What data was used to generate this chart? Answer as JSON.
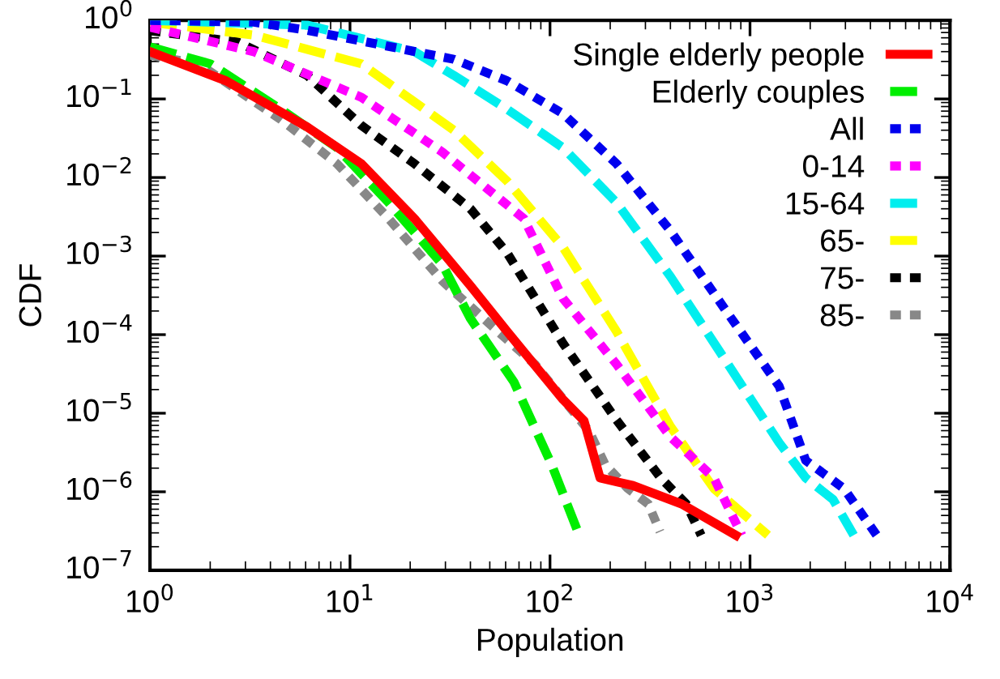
{
  "chart_data": {
    "type": "line",
    "xlabel": "Population",
    "ylabel": "CDF",
    "log": "xy",
    "grid": false,
    "legend": "top right",
    "marker": "none",
    "xlim": [
      1,
      10000
    ],
    "ylim": [
      1e-07,
      1
    ],
    "xticks": [
      {
        "value": 1,
        "label": "10$^{0}$"
      },
      {
        "value": 10,
        "label": "10$^{1}$"
      },
      {
        "value": 100,
        "label": "10$^{2}$"
      },
      {
        "value": 1000,
        "label": "10$^{3}$"
      },
      {
        "value": 10000,
        "label": "10$^{4}$"
      }
    ],
    "yticks": [
      {
        "value": 1e-07,
        "label": "10$^{−7}$"
      },
      {
        "value": 1e-06,
        "label": "10$^{−6}$"
      },
      {
        "value": 1e-05,
        "label": "10$^{−5}$"
      },
      {
        "value": 0.0001,
        "label": "10$^{−4}$"
      },
      {
        "value": 0.001,
        "label": "10$^{−3}$"
      },
      {
        "value": 0.01,
        "label": "10$^{−2}$"
      },
      {
        "value": 0.1,
        "label": "10$^{−1}$"
      },
      {
        "value": 1,
        "label": "10$^{0}$"
      }
    ],
    "series": [
      {
        "name": "Single elderly people",
        "color": "#ff0000",
        "line_style": "solid",
        "x": [
          1,
          2.4,
          6.1,
          11.4,
          21,
          40,
          61,
          116,
          148,
          178,
          260,
          455,
          850
        ],
        "values": [
          0.4,
          0.17,
          0.044,
          0.015,
          0.003,
          0.00042,
          0.00011,
          1.5e-05,
          8e-06,
          1.5e-06,
          1.2e-06,
          7e-07,
          2.8e-07
        ]
      },
      {
        "name": "Elderly couples",
        "color": "#00ee00",
        "line_style": "dashed",
        "x": [
          1,
          2,
          4.5,
          8.6,
          15.6,
          29,
          40,
          66,
          102,
          140
        ],
        "values": [
          0.46,
          0.28,
          0.074,
          0.024,
          0.0048,
          0.00078,
          0.00016,
          2.5e-05,
          2.2e-06,
          2.8e-07
        ]
      },
      {
        "name": "All",
        "color": "#0000ee",
        "line_style": "dotted",
        "x": [
          1,
          3.3,
          6.1,
          33,
          61,
          116,
          215,
          400,
          750,
          1400,
          1900,
          2950,
          4300
        ],
        "values": [
          1,
          0.95,
          0.75,
          0.32,
          0.17,
          0.065,
          0.015,
          0.0021,
          0.00021,
          2.2e-05,
          2.5e-06,
          1.1e-06,
          2.8e-07
        ]
      },
      {
        "name": "0-14",
        "color": "#ff00ff",
        "line_style": "dotted",
        "x": [
          1,
          3.3,
          11.4,
          29,
          74,
          116,
          215,
          400,
          660,
          910
        ],
        "values": [
          0.82,
          0.4,
          0.105,
          0.021,
          0.003,
          0.00029,
          4.2e-05,
          5e-06,
          1.5e-06,
          2.8e-07
        ]
      },
      {
        "name": "15-64",
        "color": "#00eeee",
        "line_style": "dashed",
        "x": [
          1,
          6.1,
          21,
          33,
          61,
          116,
          215,
          400,
          750,
          1400,
          1900,
          2600,
          3300
        ],
        "values": [
          1,
          0.87,
          0.4,
          0.2,
          0.074,
          0.024,
          0.0048,
          0.00055,
          4.8e-05,
          4.2e-06,
          1.5e-06,
          8e-07,
          2.8e-07
        ]
      },
      {
        "name": "65-",
        "color": "#ffff00",
        "line_style": "dashed",
        "x": [
          1,
          3.3,
          11.4,
          33,
          61,
          116,
          215,
          400,
          660,
          1230
        ],
        "values": [
          0.95,
          0.65,
          0.28,
          0.04,
          0.009,
          0.0013,
          0.00011,
          6.8e-06,
          1.1e-06,
          2.8e-07
        ]
      },
      {
        "name": "75-",
        "color": "#000000",
        "line_style": "dotted",
        "x": [
          1,
          2.75,
          6.1,
          11.4,
          21,
          40,
          61,
          116,
          215,
          358,
          480,
          570
        ],
        "values": [
          0.74,
          0.53,
          0.2,
          0.046,
          0.015,
          0.004,
          0.0011,
          7.8e-05,
          8.2e-06,
          1.5e-06,
          7e-07,
          2.8e-07
        ]
      },
      {
        "name": "85-",
        "color": "#888888",
        "line_style": "dotted",
        "x": [
          1,
          1.75,
          4.5,
          8.6,
          15.6,
          29,
          51,
          84,
          157,
          189,
          245,
          310,
          355
        ],
        "values": [
          0.36,
          0.28,
          0.055,
          0.015,
          0.003,
          0.00048,
          0.00013,
          4.2e-05,
          5.9e-06,
          2.2e-06,
          1.1e-06,
          7e-07,
          3.1e-07
        ]
      }
    ]
  }
}
